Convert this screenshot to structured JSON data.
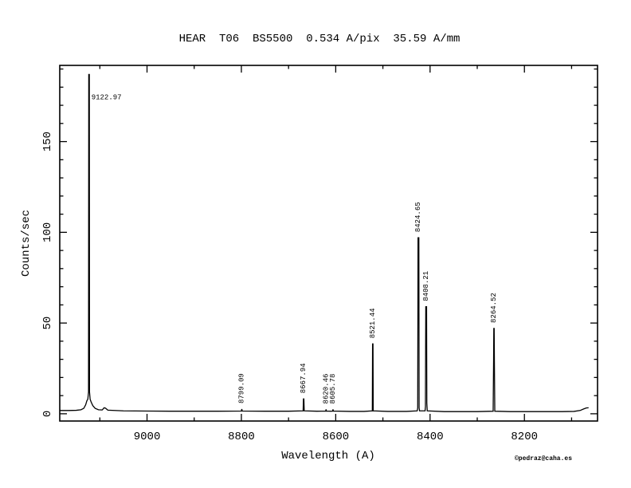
{
  "title": "HEAR  T06  BS5500  0.534 A/pix  35.59 A/mm",
  "credit": "©pedraz@caha.es",
  "colors": {
    "background": "#ffffff",
    "foreground": "#000000",
    "credit_blue": "#0000cc"
  },
  "chart_data": {
    "type": "line",
    "title": "HEAR  T06  BS5500  0.534 A/pix  35.59 A/mm",
    "xlabel": "Wavelength (A)",
    "ylabel": "Counts/sec",
    "x_axis": {
      "min": 9185,
      "max": 8045,
      "reversed": true,
      "major_ticks": [
        9000,
        8800,
        8600,
        8400,
        8200
      ],
      "minor_ticks": [
        9100,
        8900,
        8700,
        8500,
        8300,
        8100
      ]
    },
    "y_axis": {
      "min": -4,
      "max": 192,
      "major_ticks": [
        0,
        50,
        100,
        150
      ],
      "minor_tick_interval": 10
    },
    "grid": false,
    "peaks": [
      {
        "wavelength": 9122.97,
        "counts": 187,
        "label": "9122.97",
        "label_orientation": "horizontal"
      },
      {
        "wavelength": 8799.09,
        "counts": 2.6,
        "label": "8799.09",
        "label_orientation": "vertical"
      },
      {
        "wavelength": 8667.94,
        "counts": 8.2,
        "label": "8667.94",
        "label_orientation": "vertical"
      },
      {
        "wavelength": 8620.46,
        "counts": 2.4,
        "label": "8620.46",
        "label_orientation": "vertical"
      },
      {
        "wavelength": 8605.78,
        "counts": 2.4,
        "label": "8605.78",
        "label_orientation": "vertical"
      },
      {
        "wavelength": 8521.44,
        "counts": 38.5,
        "label": "8521.44",
        "label_orientation": "vertical"
      },
      {
        "wavelength": 8424.65,
        "counts": 97,
        "label": "8424.65",
        "label_orientation": "vertical"
      },
      {
        "wavelength": 8408.21,
        "counts": 59,
        "label": "8408.21",
        "label_orientation": "vertical"
      },
      {
        "wavelength": 8264.52,
        "counts": 47,
        "label": "8264.52",
        "label_orientation": "vertical"
      }
    ],
    "trace": [
      [
        9185,
        1.8
      ],
      [
        9166,
        1.8
      ],
      [
        9150,
        1.9
      ],
      [
        9140,
        2.2
      ],
      [
        9134,
        3.0
      ],
      [
        9130,
        5.0
      ],
      [
        9127.5,
        7.2
      ],
      [
        9125.5,
        8.0
      ],
      [
        9124.0,
        12
      ],
      [
        9123.5,
        187
      ],
      [
        9122.3,
        187
      ],
      [
        9121.9,
        12
      ],
      [
        9120.6,
        8.0
      ],
      [
        9118.5,
        6.5
      ],
      [
        9115,
        4.5
      ],
      [
        9110,
        3.0
      ],
      [
        9103,
        2.2
      ],
      [
        9095,
        2.1
      ],
      [
        9091,
        3.3
      ],
      [
        9088,
        3.1
      ],
      [
        9083,
        2.0
      ],
      [
        9050,
        1.6
      ],
      [
        9000,
        1.5
      ],
      [
        8950,
        1.4
      ],
      [
        8900,
        1.4
      ],
      [
        8850,
        1.4
      ],
      [
        8800.1,
        1.5
      ],
      [
        8799.09,
        2.6
      ],
      [
        8798.1,
        1.5
      ],
      [
        8750,
        1.4
      ],
      [
        8700,
        1.4
      ],
      [
        8669.1,
        1.6
      ],
      [
        8668.4,
        8.2
      ],
      [
        8667.5,
        8.2
      ],
      [
        8666.8,
        1.6
      ],
      [
        8640,
        1.4
      ],
      [
        8621.2,
        1.5
      ],
      [
        8620.46,
        2.4
      ],
      [
        8619.7,
        1.5
      ],
      [
        8610,
        1.4
      ],
      [
        8606.5,
        1.5
      ],
      [
        8605.78,
        2.4
      ],
      [
        8605.0,
        1.5
      ],
      [
        8570,
        1.3
      ],
      [
        8540,
        1.3
      ],
      [
        8522.4,
        1.6
      ],
      [
        8521.9,
        38.5
      ],
      [
        8521.0,
        38.5
      ],
      [
        8520.5,
        1.6
      ],
      [
        8490,
        1.3
      ],
      [
        8450,
        1.3
      ],
      [
        8427.3,
        1.6
      ],
      [
        8426.2,
        3.2
      ],
      [
        8425.5,
        97
      ],
      [
        8423.8,
        97
      ],
      [
        8423.2,
        3.2
      ],
      [
        8422.3,
        1.6
      ],
      [
        8410.6,
        1.6
      ],
      [
        8409.8,
        4.0
      ],
      [
        8409.1,
        59
      ],
      [
        8407.4,
        59
      ],
      [
        8406.9,
        6.0
      ],
      [
        8406.0,
        1.6
      ],
      [
        8370,
        1.2
      ],
      [
        8330,
        1.2
      ],
      [
        8300,
        1.2
      ],
      [
        8266.3,
        1.4
      ],
      [
        8265.3,
        30
      ],
      [
        8264.9,
        47
      ],
      [
        8264.1,
        47
      ],
      [
        8263.7,
        30
      ],
      [
        8262.8,
        1.4
      ],
      [
        8230,
        1.2
      ],
      [
        8200,
        1.2
      ],
      [
        8160,
        1.2
      ],
      [
        8120,
        1.2
      ],
      [
        8095,
        1.3
      ],
      [
        8082,
        1.8
      ],
      [
        8075,
        2.6
      ],
      [
        8069,
        3.2
      ],
      [
        8064,
        3.3
      ]
    ]
  }
}
